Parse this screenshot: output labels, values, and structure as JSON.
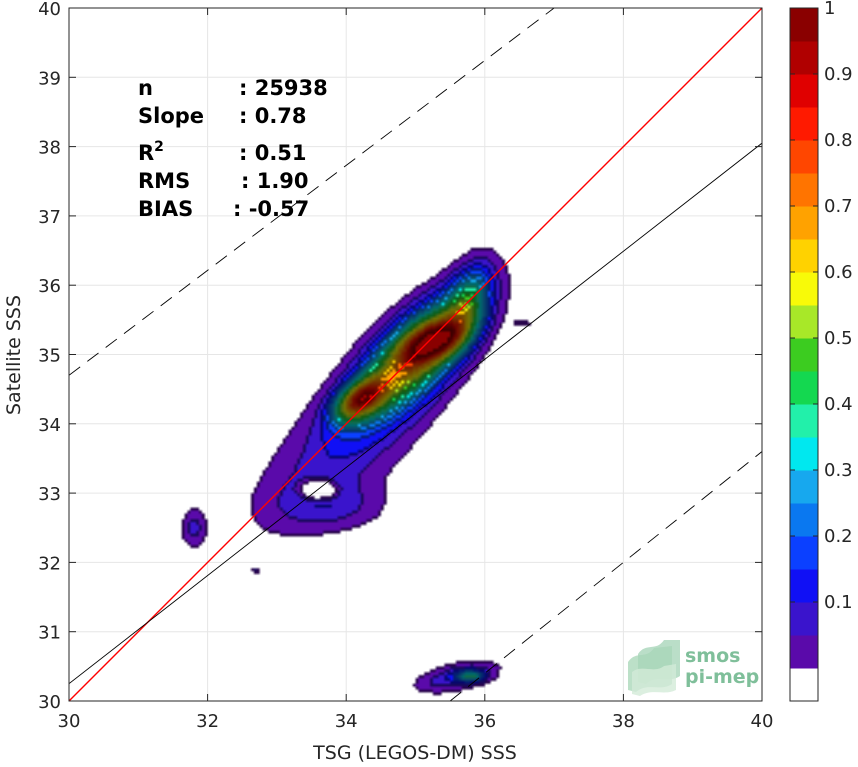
{
  "chart_data": {
    "type": "heatmap",
    "title": "",
    "xlabel": "TSG (LEGOS-DM) SSS",
    "ylabel": "Satellite SSS",
    "xlim": [
      30,
      40
    ],
    "ylim": [
      30,
      40
    ],
    "xticks": [
      30,
      32,
      34,
      36,
      38,
      40
    ],
    "yticks": [
      30,
      31,
      32,
      33,
      34,
      35,
      36,
      37,
      38,
      39,
      40
    ],
    "grid": true,
    "stats": [
      {
        "label": "n",
        "value": ": 25938"
      },
      {
        "label": "Slope",
        "value": ": 0.78"
      },
      {
        "label": "R2",
        "value": ": 0.51"
      },
      {
        "label": "RMS",
        "value": ": 1.90"
      },
      {
        "label": "BIAS",
        "value": ": -0.57"
      }
    ],
    "lines": {
      "identity": {
        "slope": 1,
        "intercept": 0,
        "color": "#ff0000"
      },
      "fit": {
        "x": [
          30,
          40
        ],
        "y": [
          30.25,
          38.05
        ],
        "color": "#000000"
      },
      "upper_bound": {
        "x": [
          30,
          37.0
        ],
        "y": [
          34.7,
          40
        ],
        "color": "#000000",
        "dash": true
      },
      "lower_bound": {
        "x": [
          35.5,
          40
        ],
        "y": [
          30.0,
          33.6
        ],
        "color": "#000000",
        "dash": true
      }
    },
    "colorbar": {
      "min": 0,
      "max": 1,
      "ticks": [
        "0.1",
        "0.2",
        "0.3",
        "0.4",
        "0.5",
        "0.6",
        "0.7",
        "0.8",
        "0.9",
        "1"
      ],
      "levels": [
        0.05,
        0.1,
        0.15,
        0.2,
        0.25,
        0.3,
        0.35,
        0.4,
        0.45,
        0.5,
        0.55,
        0.6,
        0.65,
        0.7,
        0.75,
        0.8,
        0.85,
        0.9,
        0.95,
        1.0
      ],
      "colors": [
        "#ffffff",
        "#5a0aaa",
        "#3a14cc",
        "#1010f5",
        "#0b40ff",
        "#0a78f0",
        "#17a8ee",
        "#00e8ef",
        "#22f0aa",
        "#14d850",
        "#3ccc20",
        "#a8e828",
        "#f8fa08",
        "#ffd200",
        "#ffa200",
        "#ff7400",
        "#ff4600",
        "#ff1a00",
        "#e00000",
        "#b00000",
        "#8a0000"
      ]
    },
    "density_blobs": [
      {
        "cx": 35.0,
        "cy": 35.0,
        "sx": 0.75,
        "sy": 0.32,
        "angle": 45,
        "amp": 0.7
      },
      {
        "cx": 35.3,
        "cy": 35.2,
        "sx": 0.32,
        "sy": 0.17,
        "angle": 25,
        "amp": 0.55
      },
      {
        "cx": 34.2,
        "cy": 34.35,
        "sx": 0.28,
        "sy": 0.16,
        "angle": 35,
        "amp": 0.62
      },
      {
        "cx": 35.75,
        "cy": 35.75,
        "sx": 0.4,
        "sy": 0.2,
        "angle": 70,
        "amp": 0.3
      },
      {
        "cx": 34.0,
        "cy": 33.7,
        "sx": 1.15,
        "sy": 0.5,
        "angle": 42,
        "amp": 0.13
      },
      {
        "cx": 33.8,
        "cy": 32.8,
        "sx": 0.55,
        "sy": 0.25,
        "angle": 0,
        "amp": 0.09
      },
      {
        "cx": 31.8,
        "cy": 32.5,
        "sx": 0.13,
        "sy": 0.2,
        "angle": 0,
        "amp": 0.12
      },
      {
        "cx": 35.6,
        "cy": 30.35,
        "sx": 0.42,
        "sy": 0.14,
        "angle": 12,
        "amp": 0.16
      },
      {
        "cx": 35.8,
        "cy": 30.36,
        "sx": 0.14,
        "sy": 0.06,
        "angle": 0,
        "amp": 0.3
      },
      {
        "cx": 36.55,
        "cy": 35.45,
        "sx": 0.1,
        "sy": 0.03,
        "angle": 0,
        "amp": 0.1
      },
      {
        "cx": 32.7,
        "cy": 31.88,
        "sx": 0.04,
        "sy": 0.04,
        "angle": 0,
        "amp": 0.1
      }
    ],
    "holes": [
      {
        "cx": 33.6,
        "cy": 33.05,
        "sx": 0.15,
        "sy": 0.08,
        "amp": 0.3
      }
    ]
  },
  "logo": {
    "line1": "smos",
    "line2": "pi-mep"
  }
}
